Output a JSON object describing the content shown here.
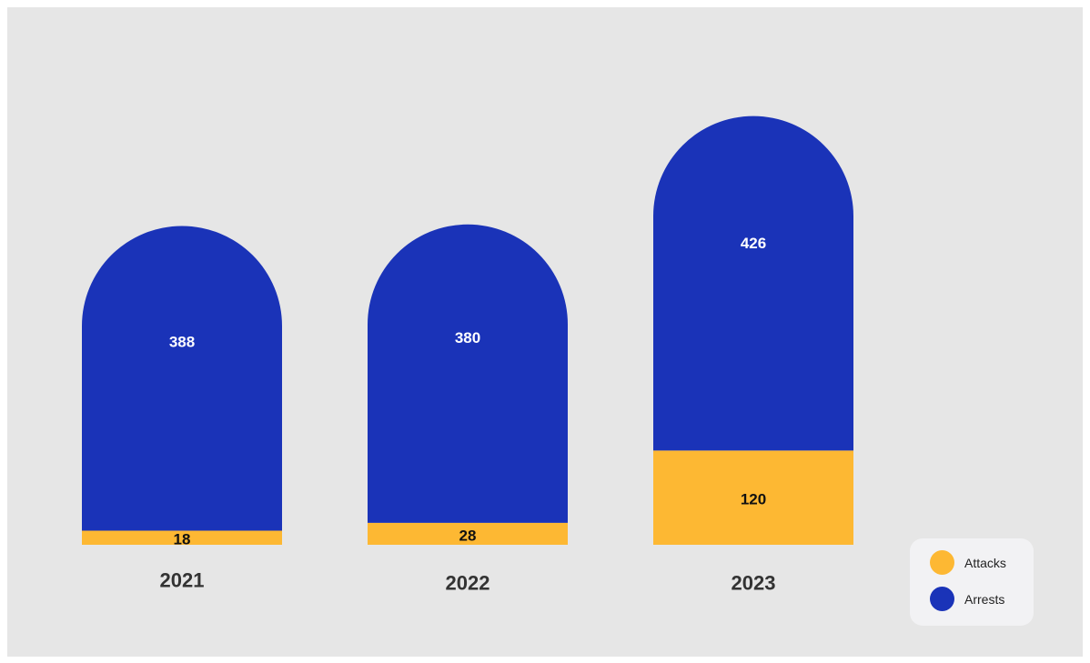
{
  "chart_data": {
    "type": "bar",
    "stacked": true,
    "categories": [
      "2021",
      "2022",
      "2023"
    ],
    "series": [
      {
        "name": "Attacks",
        "values": [
          18,
          28,
          120
        ],
        "color": "#fdb833"
      },
      {
        "name": "Arrests",
        "values": [
          388,
          380,
          426
        ],
        "color": "#1a33b8"
      }
    ],
    "title": "",
    "xlabel": "",
    "ylabel": "",
    "legend_position": "bottom-right",
    "grid": false
  },
  "colors": {
    "background": "#e6e6e6",
    "attacks": "#fdb833",
    "arrests": "#1a33b8",
    "label_on_arrests": "#ffffff",
    "label_on_attacks": "#111111",
    "category_label": "#333333"
  }
}
